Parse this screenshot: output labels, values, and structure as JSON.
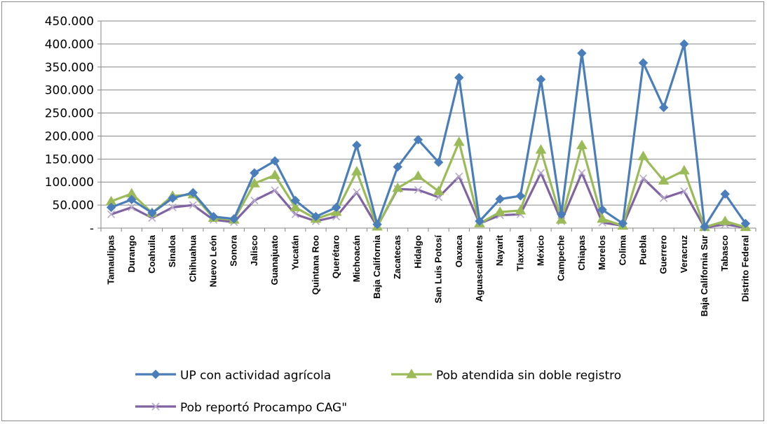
{
  "chart_data": {
    "type": "line",
    "title": "",
    "xlabel": "",
    "ylabel": "",
    "ylim": [
      0,
      450000
    ],
    "yticks": [
      0,
      50000,
      100000,
      150000,
      200000,
      250000,
      300000,
      350000,
      400000,
      450000
    ],
    "ytick_labels": [
      "-",
      "50.000",
      "100.000",
      "150.000",
      "200.000",
      "250.000",
      "300.000",
      "350.000",
      "400.000",
      "450.000"
    ],
    "grid": true,
    "legend_position": "bottom",
    "categories": [
      "Tamaulipas",
      "Durango",
      "Coahuila",
      "Sinaloa",
      "Chihuahua",
      "Nuevo León",
      "Sonora",
      "Jalisco",
      "Guanajuato",
      "Yucatán",
      "Quintana Roo",
      "Querétaro",
      "Michoacán",
      "Baja California",
      "Zacatecas",
      "Hidalgo",
      "San Luis Potosí",
      "Oaxaca",
      "Aguascalientes",
      "Nayarit",
      "Tlaxcala",
      "México",
      "Campeche",
      "Chiapas",
      "Morelos",
      "Colima",
      "Puebla",
      "Guerrero",
      "Veracruz",
      "Baja California Sur",
      "Tabasco",
      "Distrito Federal"
    ],
    "series": [
      {
        "name": "UP con actividad agrícola",
        "color": "#4a7ebb",
        "marker": "diamond",
        "values": [
          45000,
          62000,
          33000,
          65000,
          77000,
          25000,
          20000,
          120000,
          146000,
          60000,
          25000,
          45000,
          180000,
          8000,
          133000,
          192000,
          143000,
          327000,
          15000,
          63000,
          70000,
          323000,
          30000,
          380000,
          40000,
          10000,
          359000,
          262000,
          400000,
          3000,
          74000,
          10000
        ]
      },
      {
        "name": "Pob atendida sin doble registro",
        "color": "#9bbb59",
        "marker": "triangle",
        "values": [
          58000,
          75000,
          33000,
          70000,
          73000,
          22000,
          18000,
          97000,
          115000,
          45000,
          20000,
          35000,
          123000,
          3000,
          87000,
          113000,
          80000,
          187000,
          10000,
          35000,
          38000,
          170000,
          18000,
          180000,
          20000,
          5000,
          156000,
          103000,
          125000,
          2000,
          15000,
          2000
        ]
      },
      {
        "name": "Pob reportó Procampo CAG\"",
        "color": "#8064a2",
        "marker": "x",
        "values": [
          30000,
          45000,
          22000,
          45000,
          50000,
          18000,
          13000,
          60000,
          82000,
          30000,
          15000,
          25000,
          78000,
          3000,
          85000,
          83000,
          67000,
          112000,
          10000,
          28000,
          30000,
          120000,
          15000,
          120000,
          12000,
          5000,
          108000,
          65000,
          80000,
          1000,
          8000,
          1000
        ]
      }
    ]
  }
}
